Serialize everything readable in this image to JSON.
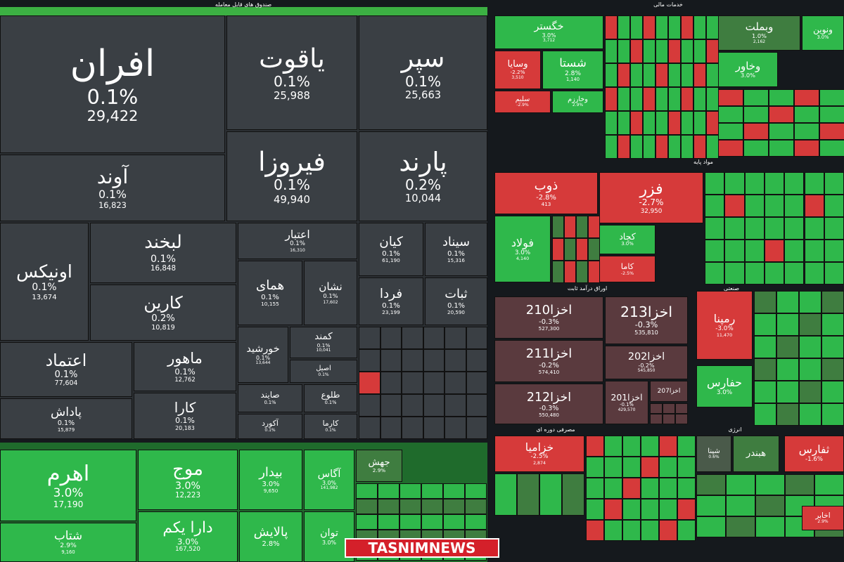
{
  "sections": [
    {
      "title": "صندوق های قابل معامله",
      "tiles": [
        {
          "name": "افران",
          "change": "0.1%",
          "value": "29,422"
        },
        {
          "name": "یاقوت",
          "change": "0.1%",
          "value": "25,988"
        },
        {
          "name": "سپر",
          "change": "0.1%",
          "value": "25,663"
        },
        {
          "name": "آوند",
          "change": "0.1%",
          "value": "16,823"
        },
        {
          "name": "فیروزا",
          "change": "0.1%",
          "value": "49,940"
        },
        {
          "name": "پارند",
          "change": "0.2%",
          "value": "10,044"
        },
        {
          "name": "اونیکس",
          "change": "0.1%",
          "value": "13,674"
        },
        {
          "name": "لبخند",
          "change": "0.1%",
          "value": "16,848"
        },
        {
          "name": "کارین",
          "change": "0.2%",
          "value": "10,819"
        },
        {
          "name": "اعتبار",
          "change": "0.1%",
          "value": "16,310"
        },
        {
          "name": "کیان",
          "change": "0.1%",
          "value": "61,190"
        },
        {
          "name": "سیناد",
          "change": "0.1%",
          "value": "15,316"
        },
        {
          "name": "همای",
          "change": "0.1%",
          "value": "10,155"
        },
        {
          "name": "نشان",
          "change": "0.1%",
          "value": "17,602"
        },
        {
          "name": "فردا",
          "change": "0.1%",
          "value": "23,199"
        },
        {
          "name": "ثبات",
          "change": "0.1%",
          "value": "20,590"
        },
        {
          "name": "اعتماد",
          "change": "0.1%",
          "value": "77,604"
        },
        {
          "name": "ماهور",
          "change": "0.1%",
          "value": "12,762"
        },
        {
          "name": "پاداش",
          "change": "0.1%",
          "value": "15,879"
        },
        {
          "name": "کارا",
          "change": "0.1%",
          "value": "20,183"
        },
        {
          "name": "خورشید",
          "change": "0.1%",
          "value": "13,644"
        },
        {
          "name": "کمند",
          "change": "0.1%",
          "value": "10,041"
        },
        {
          "name": "اصیل",
          "change": "0.1%"
        },
        {
          "name": "صایند",
          "change": "0.1%"
        },
        {
          "name": "طلوع",
          "change": "0.1%"
        },
        {
          "name": "آکورد",
          "change": "0.1%"
        },
        {
          "name": "کارما",
          "change": "0.1%"
        }
      ]
    },
    {
      "tiles": [
        {
          "name": "اهرم",
          "change": "3.0%",
          "value": "17,190"
        },
        {
          "name": "شتاب",
          "change": "2.9%",
          "value": "9,160"
        },
        {
          "name": "موج",
          "change": "3.0%",
          "value": "12,223"
        },
        {
          "name": "دارا یکم",
          "change": "3.0%",
          "value": "167,520"
        },
        {
          "name": "بیدار",
          "change": "3.0%",
          "value": "9,650"
        },
        {
          "name": "آگاس",
          "change": "3.0%",
          "value": "141,982"
        },
        {
          "name": "پالایش",
          "change": "2.8%"
        },
        {
          "name": "توان",
          "change": "3.0%"
        },
        {
          "name": "جهش",
          "change": "2.9%"
        }
      ]
    },
    {
      "title": "خدمات مالی",
      "tiles": [
        {
          "name": "خگستر",
          "change": "3.0%",
          "value": "3,712"
        },
        {
          "name": "وسایا",
          "change": "-2.2%",
          "value": "3,510"
        },
        {
          "name": "شستا",
          "change": "2.8%",
          "value": "1,140"
        },
        {
          "name": "سلیم",
          "change": "-2.9%"
        },
        {
          "name": "وخارزم",
          "change": "2.9%"
        },
        {
          "name": "وبملت",
          "change": "1.0%",
          "value": "2,162"
        },
        {
          "name": "ونوین",
          "change": "3.0%"
        },
        {
          "name": "وخاور",
          "change": "3.0%"
        }
      ]
    },
    {
      "title": "مواد پایه",
      "tiles": [
        {
          "name": "ذوب",
          "change": "-2.8%",
          "value": "413"
        },
        {
          "name": "فزر",
          "change": "-2.7%",
          "value": "32,950"
        },
        {
          "name": "فولاد",
          "change": "3.0%",
          "value": "4,140"
        },
        {
          "name": "کچاد",
          "change": "3.0%"
        },
        {
          "name": "کاما",
          "change": "-2.5%"
        }
      ]
    },
    {
      "title": "اوراق درآمد ثابت",
      "tiles": [
        {
          "name": "اخزا210",
          "change": "-0.3%",
          "value": "527,300"
        },
        {
          "name": "اخزا213",
          "change": "-0.3%",
          "value": "535,810"
        },
        {
          "name": "اخزا211",
          "change": "-0.2%",
          "value": "574,410"
        },
        {
          "name": "اخزا202",
          "change": "-0.2%",
          "value": "545,850"
        },
        {
          "name": "اخزا212",
          "change": "-0.3%",
          "value": "550,480"
        },
        {
          "name": "اخزا201",
          "change": "-0.1%",
          "value": "429,570"
        },
        {
          "name": "اخزا207"
        }
      ]
    },
    {
      "title": "صنعتی",
      "tiles": [
        {
          "name": "رمپنا",
          "change": "-3.0%",
          "value": "11,470"
        },
        {
          "name": "حفارس",
          "change": "3.0%"
        }
      ]
    },
    {
      "title": "مصرفی دوره ای",
      "tiles": [
        {
          "name": "خزامیا",
          "change": "-2.5%",
          "value": "2,874"
        }
      ]
    },
    {
      "title": "انرژی",
      "tiles": [
        {
          "name": "شپنا",
          "change": "0.6%"
        },
        {
          "name": "هبندر"
        },
        {
          "name": "ثفارس",
          "change": "-1.6%"
        },
        {
          "name": "اخابر",
          "change": "2.9%"
        }
      ]
    }
  ],
  "watermark": "TASNIMNEWS"
}
